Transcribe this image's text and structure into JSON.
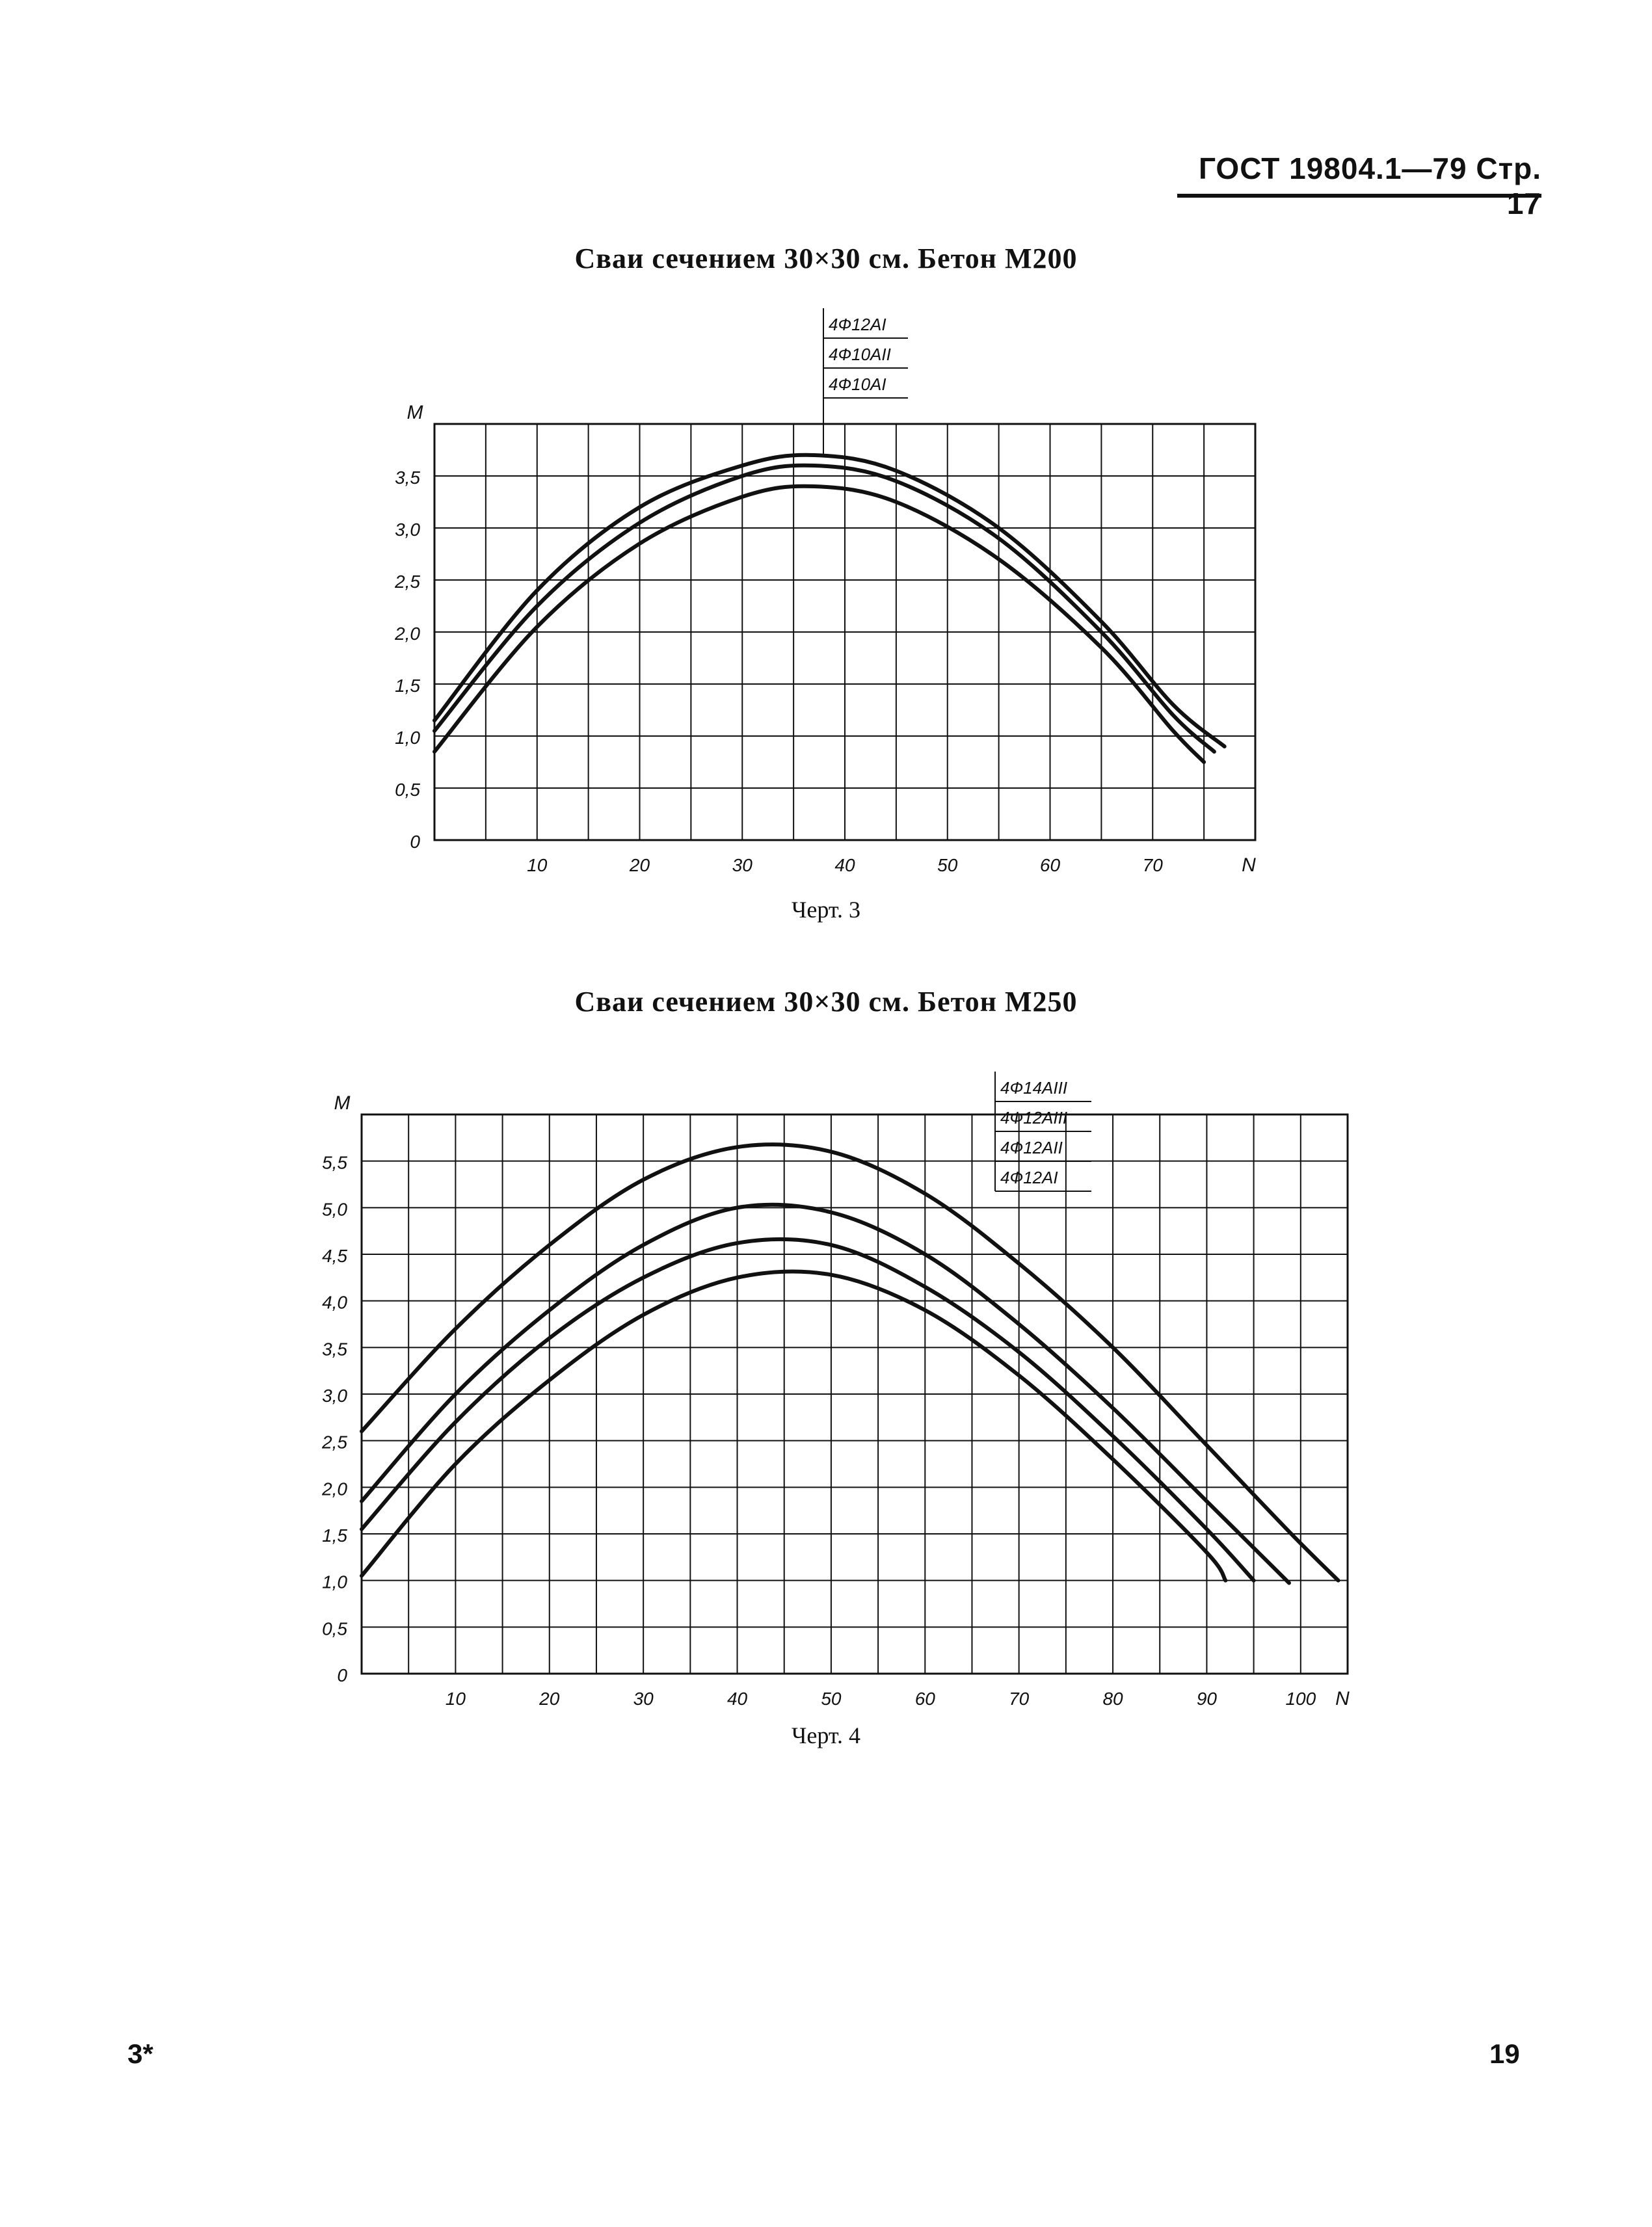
{
  "header": {
    "text": "ГОСТ 19804.1—79 Стр. 17"
  },
  "footer": {
    "left": "3*",
    "right": "19"
  },
  "colors": {
    "ink": "#111111",
    "paper": "#ffffff"
  },
  "chart_data": [
    {
      "type": "line",
      "title": "Сваи сечением 30×30 см. Бетон М200",
      "caption": "Черт. 3",
      "xlabel": "N",
      "ylabel": "M",
      "xlim": [
        0,
        80
      ],
      "ylim": [
        0,
        4.0
      ],
      "x_ticks": [
        "10",
        "20",
        "30",
        "40",
        "50",
        "60",
        "70"
      ],
      "y_ticks": [
        "0",
        "0,5",
        "1,0",
        "1,5",
        "2,0",
        "2,5",
        "3,0",
        "3,5"
      ],
      "grid": true,
      "legend_position": "top-center",
      "legend": [
        "4Ф12АI",
        "4Ф10АII",
        "4Ф10АI"
      ],
      "series": [
        {
          "name": "4Ф12АI",
          "x": [
            0,
            10,
            20,
            30,
            37,
            45,
            55,
            65,
            72,
            77
          ],
          "y": [
            1.15,
            2.4,
            3.2,
            3.6,
            3.7,
            3.55,
            3.0,
            2.1,
            1.3,
            0.9
          ]
        },
        {
          "name": "4Ф10АII",
          "x": [
            0,
            10,
            20,
            30,
            37,
            45,
            55,
            65,
            72,
            76
          ],
          "y": [
            1.05,
            2.25,
            3.05,
            3.5,
            3.6,
            3.45,
            2.9,
            2.0,
            1.2,
            0.85
          ]
        },
        {
          "name": "4Ф10АI",
          "x": [
            0,
            10,
            20,
            30,
            37,
            45,
            55,
            65,
            72,
            75
          ],
          "y": [
            0.85,
            2.05,
            2.85,
            3.3,
            3.4,
            3.25,
            2.7,
            1.85,
            1.05,
            0.75
          ]
        }
      ]
    },
    {
      "type": "line",
      "title": "Сваи сечением 30×30 см. Бетон М250",
      "caption": "Черт. 4",
      "xlabel": "N",
      "ylabel": "M",
      "xlim": [
        0,
        105
      ],
      "ylim": [
        0,
        6.0
      ],
      "x_ticks": [
        "10",
        "20",
        "30",
        "40",
        "50",
        "60",
        "70",
        "80",
        "90",
        "100"
      ],
      "y_ticks": [
        "0",
        "0,5",
        "1,0",
        "1,5",
        "2,0",
        "2,5",
        "3,0",
        "3,5",
        "4,0",
        "4,5",
        "5,0",
        "5,5"
      ],
      "grid": true,
      "legend_position": "top-right",
      "legend": [
        "4Ф14АIII",
        "4Ф12АIII",
        "4Ф12АII",
        "4Ф12АI"
      ],
      "series": [
        {
          "name": "4Ф14АIII",
          "x": [
            0,
            10,
            20,
            30,
            40,
            50,
            60,
            70,
            80,
            90,
            99,
            104
          ],
          "y": [
            2.6,
            3.7,
            4.6,
            5.3,
            5.65,
            5.6,
            5.15,
            4.4,
            3.5,
            2.45,
            1.5,
            1.0
          ]
        },
        {
          "name": "4Ф12АIII",
          "x": [
            0,
            10,
            20,
            30,
            40,
            50,
            60,
            70,
            80,
            90,
            98,
            98.5
          ],
          "y": [
            1.85,
            3.0,
            3.9,
            4.6,
            5.0,
            4.95,
            4.5,
            3.75,
            2.85,
            1.85,
            1.05,
            1.0
          ]
        },
        {
          "name": "4Ф12АII",
          "x": [
            0,
            10,
            20,
            30,
            40,
            50,
            60,
            70,
            80,
            90,
            95
          ],
          "y": [
            1.55,
            2.7,
            3.6,
            4.25,
            4.62,
            4.6,
            4.15,
            3.45,
            2.55,
            1.55,
            1.0
          ]
        },
        {
          "name": "4Ф12АI",
          "x": [
            0,
            10,
            20,
            30,
            40,
            50,
            60,
            70,
            80,
            90,
            92
          ],
          "y": [
            1.05,
            2.25,
            3.15,
            3.85,
            4.25,
            4.28,
            3.9,
            3.2,
            2.3,
            1.3,
            1.0
          ]
        }
      ]
    }
  ]
}
